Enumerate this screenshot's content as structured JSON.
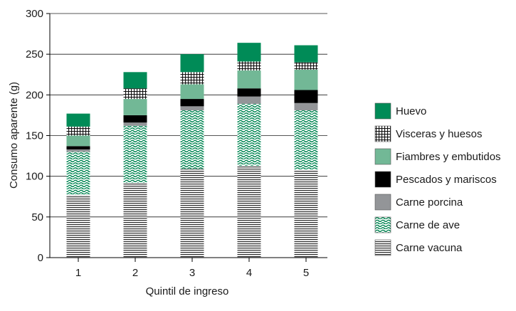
{
  "chart_data": {
    "type": "bar",
    "stacked": true,
    "title": "",
    "xlabel": "Quintil de ingreso",
    "ylabel": "Consumo aparente (g)",
    "categories": [
      "1",
      "2",
      "3",
      "4",
      "5"
    ],
    "ylim": [
      0,
      300
    ],
    "yticks": [
      0,
      50,
      100,
      150,
      200,
      250,
      300
    ],
    "grid": true,
    "legend_position": "right",
    "series": [
      {
        "name": "Carne vacuna",
        "pattern": "horizontal-lines",
        "color": "#333333",
        "values": [
          77,
          92,
          109,
          113,
          108
        ]
      },
      {
        "name": "Carne de ave",
        "pattern": "green-waves",
        "color": "#0a8a58",
        "values": [
          53,
          70,
          72,
          76,
          73
        ]
      },
      {
        "name": "Carne porcina",
        "pattern": "solid",
        "color": "#939598",
        "values": [
          3,
          4,
          5,
          9,
          9
        ]
      },
      {
        "name": "Pescados y mariscos",
        "pattern": "solid",
        "color": "#000000",
        "values": [
          4,
          9,
          9,
          10,
          16
        ]
      },
      {
        "name": "Fiambres y embutidos",
        "pattern": "solid",
        "color": "#72b896",
        "values": [
          13,
          20,
          18,
          22,
          25
        ]
      },
      {
        "name": "Visceras y huesos",
        "pattern": "grid",
        "color": "#000000",
        "values": [
          11,
          13,
          15,
          11,
          9
        ]
      },
      {
        "name": "Huevo",
        "pattern": "solid",
        "color": "#008b57",
        "values": [
          16,
          20,
          22,
          23,
          21
        ]
      }
    ]
  }
}
